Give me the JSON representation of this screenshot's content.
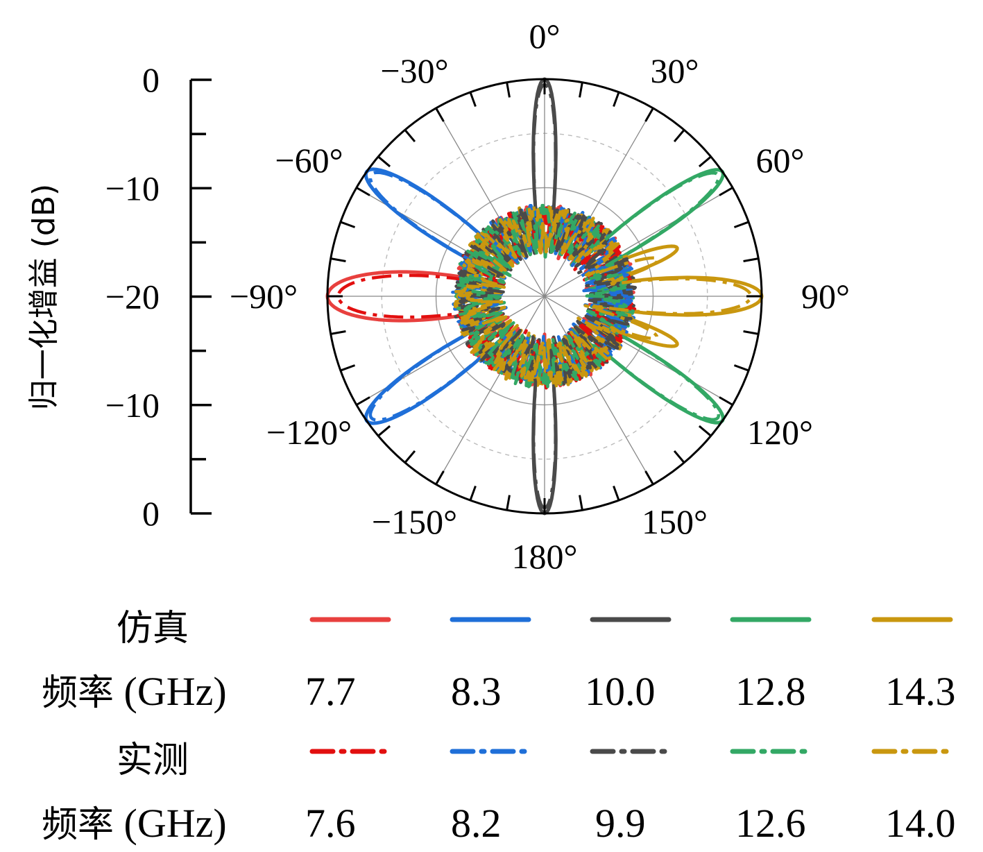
{
  "chart_data": {
    "type": "polar",
    "ylabel": "归一化增益 (dB)",
    "radial_axis": {
      "range": [
        -20,
        0
      ],
      "ticks": [
        "0",
        "−10",
        "−20",
        "−10",
        "0"
      ]
    },
    "angle_labels": [
      "0°",
      "30°",
      "60°",
      "90°",
      "120°",
      "150°",
      "180°",
      "−150°",
      "−120°",
      "−90°",
      "−60°",
      "−30°"
    ],
    "grid": true,
    "colors": {
      "c77": "#e8403e",
      "c83": "#1f6fd8",
      "c100": "#4a4a4a",
      "c128": "#33a865",
      "c143": "#c9970f",
      "meas77": "#e20f0f"
    },
    "series": [
      {
        "group": "仿真",
        "freq": "7.7",
        "color": "#e8403e",
        "style": "solid",
        "lobes": [
          [
            -90,
            0,
            13
          ],
          [
            90,
            -12,
            10
          ]
        ]
      },
      {
        "group": "仿真",
        "freq": "8.3",
        "color": "#1f6fd8",
        "style": "solid",
        "lobes": [
          [
            -55,
            0,
            9
          ],
          [
            -125,
            0,
            9
          ]
        ]
      },
      {
        "group": "仿真",
        "freq": "10.0",
        "color": "#4a4a4a",
        "style": "solid",
        "lobes": [
          [
            0,
            0,
            6
          ],
          [
            180,
            0,
            6
          ]
        ]
      },
      {
        "group": "仿真",
        "freq": "12.8",
        "color": "#33a865",
        "style": "solid",
        "lobes": [
          [
            55,
            0,
            8
          ],
          [
            125,
            0,
            8
          ]
        ]
      },
      {
        "group": "仿真",
        "freq": "14.3",
        "color": "#c9970f",
        "style": "solid",
        "lobes": [
          [
            90,
            0,
            10
          ],
          [
            70,
            -7,
            8
          ],
          [
            110,
            -7,
            8
          ],
          [
            -90,
            -12,
            8
          ]
        ]
      },
      {
        "group": "实测",
        "freq": "7.6",
        "color": "#e20f0f",
        "style": "dashdot",
        "lobes": [
          [
            -90,
            -1,
            12
          ],
          [
            90,
            -12,
            10
          ]
        ]
      },
      {
        "group": "实测",
        "freq": "8.2",
        "color": "#1f6fd8",
        "style": "dashdot",
        "lobes": [
          [
            -55,
            -0.5,
            9
          ],
          [
            -125,
            -0.5,
            9
          ]
        ]
      },
      {
        "group": "实测",
        "freq": "9.9",
        "color": "#4a4a4a",
        "style": "dashdot",
        "lobes": [
          [
            0,
            -0.5,
            6
          ],
          [
            180,
            -0.5,
            6
          ]
        ]
      },
      {
        "group": "实测",
        "freq": "12.6",
        "color": "#33a865",
        "style": "dashdot",
        "lobes": [
          [
            55,
            -0.5,
            8
          ],
          [
            125,
            -0.5,
            8
          ]
        ]
      },
      {
        "group": "实测",
        "freq": "14.0",
        "color": "#c9970f",
        "style": "dashdot",
        "lobes": [
          [
            90,
            -1,
            10
          ],
          [
            72,
            -9,
            8
          ],
          [
            110,
            -9,
            8
          ],
          [
            -90,
            -13,
            8
          ]
        ]
      }
    ]
  },
  "legend": {
    "sim_label": "仿真",
    "meas_label": "实测",
    "freq_label_cn": "频率",
    "freq_label_unit": "(GHz)",
    "sim_freqs": [
      "7.7",
      "8.3",
      "10.0",
      "12.8",
      "14.3"
    ],
    "meas_freqs": [
      "7.6",
      "8.2",
      "9.9",
      "12.6",
      "14.0"
    ]
  }
}
